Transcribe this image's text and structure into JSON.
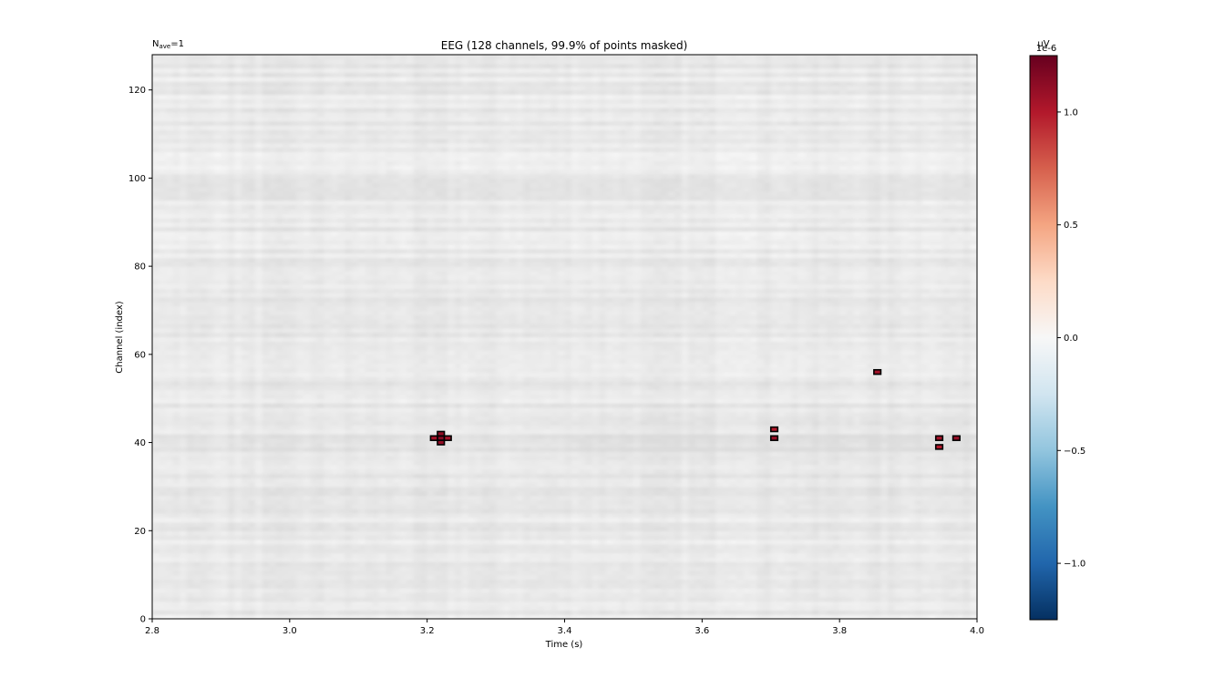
{
  "chart_data": {
    "type": "heatmap",
    "title": "EEG (128 channels, 99.9% of points masked)",
    "nave_label": "N",
    "nave_sub": "ave",
    "nave_value": "=1",
    "xlabel": "Time (s)",
    "ylabel": "Channel (index)",
    "xlim": [
      2.8,
      4.0
    ],
    "ylim": [
      0,
      128
    ],
    "xticks": [
      2.8,
      3.0,
      3.2,
      3.4,
      3.6,
      3.8,
      4.0
    ],
    "xtick_labels": [
      "2.8",
      "3.0",
      "3.2",
      "3.4",
      "3.6",
      "3.8",
      "4.0"
    ],
    "yticks": [
      0,
      20,
      40,
      60,
      80,
      100,
      120
    ],
    "ytick_labels": [
      "0",
      "20",
      "40",
      "60",
      "80",
      "100",
      "120"
    ],
    "masked_style": "grey",
    "significant_clusters": [
      {
        "time": 3.22,
        "channel": 41,
        "value": 1.15
      },
      {
        "time": 3.22,
        "channel": 42,
        "value": 1.1
      },
      {
        "time": 3.22,
        "channel": 40,
        "value": 1.1
      },
      {
        "time": 3.21,
        "channel": 41,
        "value": 1.05
      },
      {
        "time": 3.23,
        "channel": 41,
        "value": 1.05
      },
      {
        "time": 3.705,
        "channel": 43,
        "value": 1.0
      },
      {
        "time": 3.705,
        "channel": 41,
        "value": 1.1
      },
      {
        "time": 3.855,
        "channel": 56,
        "value": 1.05
      },
      {
        "time": 3.945,
        "channel": 41,
        "value": 1.05
      },
      {
        "time": 3.945,
        "channel": 39,
        "value": 1.0
      },
      {
        "time": 3.97,
        "channel": 41,
        "value": 1.1
      }
    ],
    "colorbar": {
      "unit_label": "µV",
      "scale_label": "1e-6",
      "cmap": "RdBu_r",
      "vmin": -1.25,
      "vmax": 1.25,
      "ticks": [
        -1.0,
        -0.5,
        0.0,
        0.5,
        1.0
      ],
      "tick_labels": [
        "−1.0",
        "−0.5",
        "0.0",
        "0.5",
        "1.0"
      ],
      "colors": [
        "#053061",
        "#2166ac",
        "#4393c3",
        "#92c5de",
        "#d1e5f0",
        "#f7f7f7",
        "#fddbc7",
        "#f4a582",
        "#d6604d",
        "#b2182b",
        "#67001f"
      ]
    }
  }
}
